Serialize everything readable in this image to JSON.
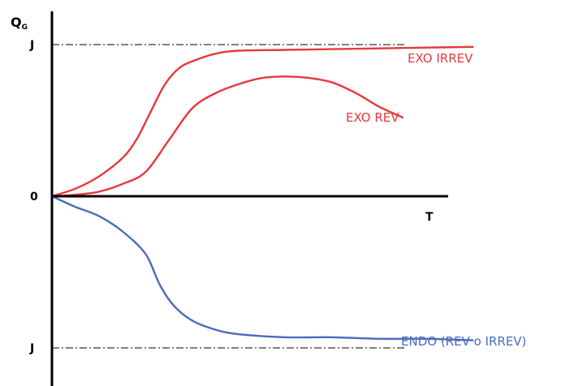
{
  "chart_data": {
    "type": "line",
    "ylabel": "Q",
    "ylabel_sub": "G",
    "xlabel": "T",
    "ytick_labels": {
      "upper": "J",
      "zero": "0",
      "lower": "J"
    },
    "y_ref": {
      "upper": 1,
      "zero": 0,
      "lower": -1
    },
    "xlim": [
      0,
      10
    ],
    "ylim": [
      -1.1,
      1.15
    ],
    "grid": false,
    "legend": "none",
    "series": [
      {
        "name": "EXO IRREV",
        "color": "#e8383c",
        "x": [
          0,
          0.5,
          1.0,
          1.5,
          1.8,
          2.1,
          2.4,
          2.7,
          3.0,
          3.5,
          4.0,
          5.0,
          6.0,
          7.0,
          8.0,
          9.0
        ],
        "y": [
          0,
          0.05,
          0.13,
          0.25,
          0.37,
          0.55,
          0.73,
          0.84,
          0.89,
          0.94,
          0.96,
          0.965,
          0.97,
          0.975,
          0.98,
          0.985
        ]
      },
      {
        "name": "EXO REV",
        "color": "#e8383c",
        "x": [
          0,
          0.5,
          1.0,
          1.5,
          2.0,
          2.5,
          3.0,
          3.5,
          4.0,
          4.5,
          5.0,
          5.5,
          6.0,
          6.5,
          7.0,
          7.5
        ],
        "y": [
          0,
          0.01,
          0.03,
          0.08,
          0.16,
          0.37,
          0.58,
          0.68,
          0.74,
          0.78,
          0.79,
          0.78,
          0.75,
          0.68,
          0.59,
          0.52
        ]
      },
      {
        "name": "ENDO (REV o IRREV)",
        "color": "#4a6bbd",
        "x": [
          0,
          0.5,
          1.0,
          1.5,
          2.0,
          2.3,
          2.6,
          3.0,
          3.5,
          4.0,
          5.0,
          6.0,
          7.0,
          8.0,
          9.0
        ],
        "y": [
          0,
          -0.07,
          -0.13,
          -0.23,
          -0.38,
          -0.58,
          -0.72,
          -0.82,
          -0.88,
          -0.91,
          -0.93,
          -0.93,
          -0.94,
          -0.94,
          -0.95
        ]
      }
    ]
  }
}
